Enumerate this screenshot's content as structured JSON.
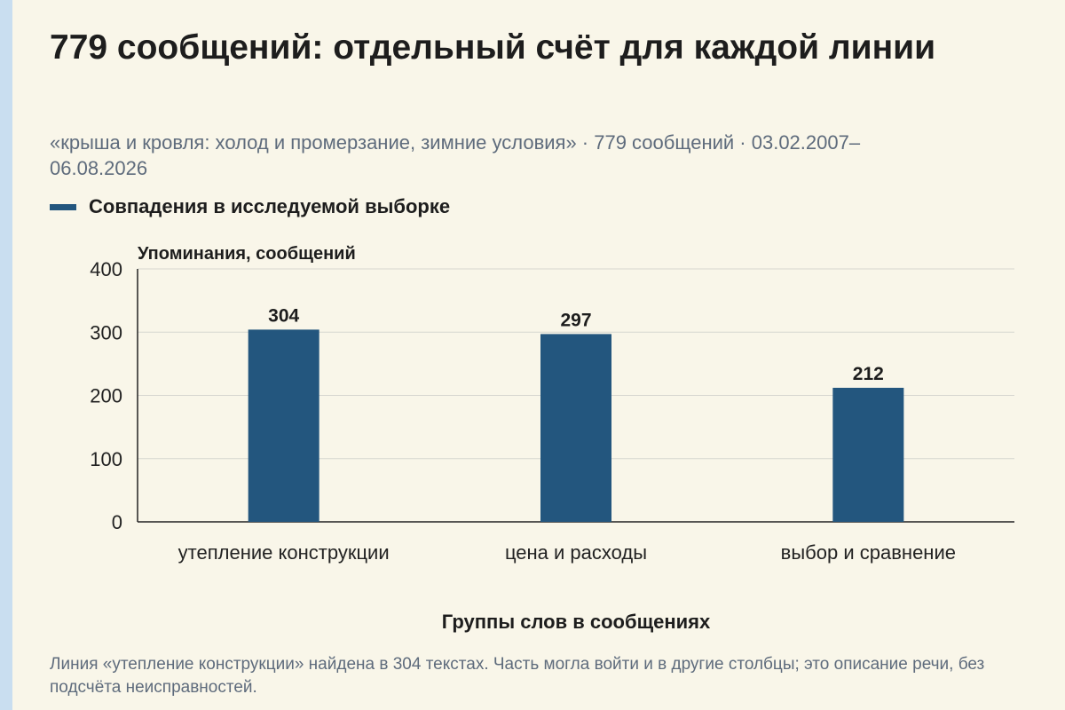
{
  "title": "779 сообщений: отдельный счёт для каждой линии",
  "subtitle": "«крыша и кровля: холод и промерзание, зимние условия» · 779 сообщений · 03.02.2007–06.08.2026",
  "footnote": "Линия «утепление конструкции» найдена в 304 текстах. Часть могла войти и в другие столбцы; это описание речи, без подсчёта неисправностей.",
  "colors": {
    "bar": "#23567e",
    "grid": "#d6d6d0",
    "axis": "#222222",
    "background": "#f9f6e9"
  },
  "chart_data": {
    "type": "bar",
    "categories": [
      "утепление конструкции",
      "цена и расходы",
      "выбор и сравнение"
    ],
    "series": [
      {
        "name": "Совпадения в исследуемой выборке",
        "values": [
          304,
          297,
          212
        ]
      }
    ],
    "xlabel": "Группы слов в сообщениях",
    "ylabel": "Упоминания, сообщений",
    "ylim": [
      0,
      400
    ],
    "yticks": [
      0,
      100,
      200,
      300,
      400
    ],
    "data_labels": true,
    "grid": true,
    "legend": "top-left"
  }
}
